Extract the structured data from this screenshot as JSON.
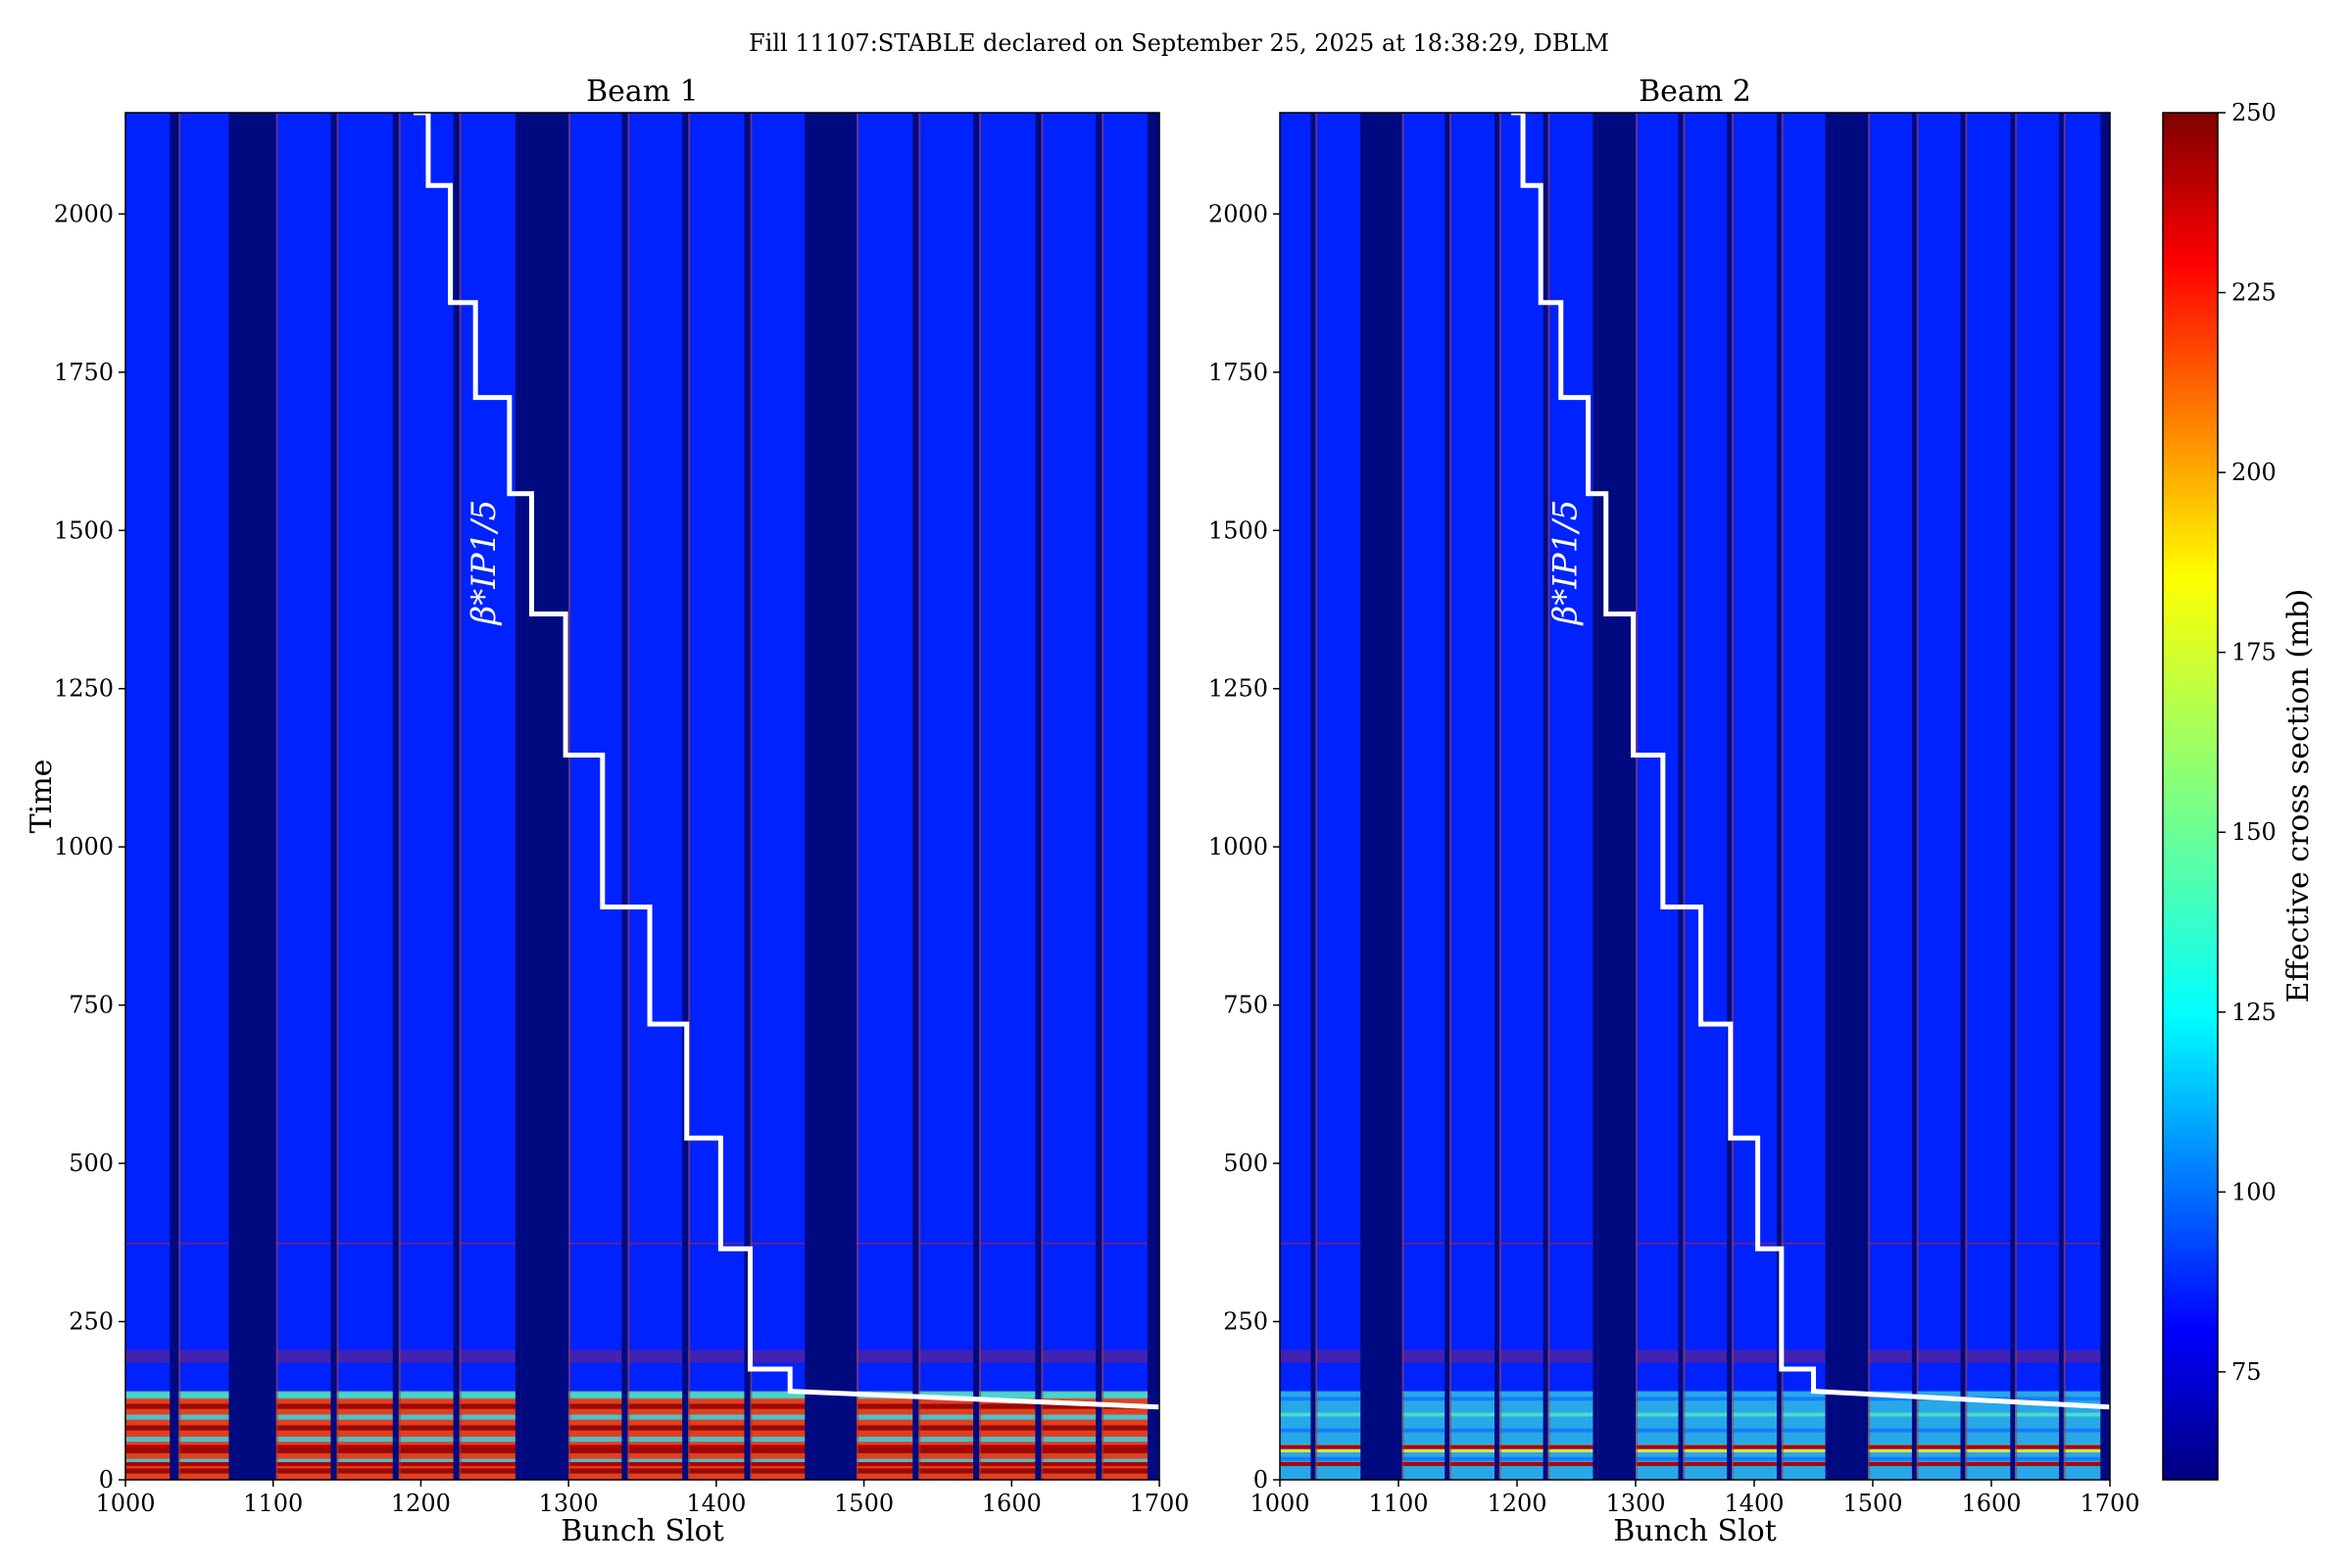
{
  "figure": {
    "title": "Fill 11107:STABLE declared on September 25, 2025 at 18:38:29, DBLM"
  },
  "chart_data": [
    {
      "type": "heatmap",
      "title": "Beam 1",
      "xlabel": "Bunch Slot",
      "ylabel": "Time",
      "xlim": [
        1000,
        1700
      ],
      "ylim": [
        0,
        2160
      ],
      "xticks": [
        "1000",
        "1100",
        "1200",
        "1300",
        "1400",
        "1500",
        "1600",
        "1700"
      ],
      "yticks": [
        "0",
        "250",
        "500",
        "750",
        "1000",
        "1250",
        "1500",
        "1750",
        "2000"
      ],
      "train_gaps": [
        [
          1030,
          1036
        ],
        [
          1070,
          1102
        ],
        [
          1139,
          1143
        ],
        [
          1181,
          1185
        ],
        [
          1222,
          1226
        ],
        [
          1264,
          1268
        ],
        [
          1268,
          1300
        ],
        [
          1336,
          1340
        ],
        [
          1377,
          1381
        ],
        [
          1419,
          1423
        ],
        [
          1460,
          1495
        ],
        [
          1533,
          1537
        ],
        [
          1574,
          1578
        ],
        [
          1616,
          1620
        ],
        [
          1657,
          1661
        ],
        [
          1692,
          1700
        ]
      ],
      "annotation": "β*IP1/5",
      "beta_star_step_x": [
        1195,
        1205,
        1220,
        1237,
        1260,
        1275,
        1298,
        1323,
        1355,
        1380,
        1403,
        1423,
        1450,
        1700
      ],
      "beta_star_step_y": [
        2160,
        2045,
        1860,
        1710,
        1558,
        1368,
        1145,
        905,
        720,
        540,
        365,
        175,
        140,
        115
      ]
    },
    {
      "type": "heatmap",
      "title": "Beam 2",
      "xlabel": "Bunch Slot",
      "ylabel": "",
      "xlim": [
        1000,
        1700
      ],
      "ylim": [
        0,
        2160
      ],
      "xticks": [
        "1000",
        "1100",
        "1200",
        "1300",
        "1400",
        "1500",
        "1600",
        "1700"
      ],
      "yticks": [
        "0",
        "250",
        "500",
        "750",
        "1000",
        "1250",
        "1500",
        "1750",
        "2000"
      ],
      "train_gaps": [
        [
          1026,
          1030
        ],
        [
          1068,
          1103
        ],
        [
          1139,
          1143
        ],
        [
          1181,
          1185
        ],
        [
          1222,
          1226
        ],
        [
          1264,
          1268
        ],
        [
          1268,
          1300
        ],
        [
          1336,
          1340
        ],
        [
          1377,
          1381
        ],
        [
          1419,
          1423
        ],
        [
          1460,
          1496
        ],
        [
          1533,
          1537
        ],
        [
          1574,
          1578
        ],
        [
          1616,
          1620
        ],
        [
          1657,
          1661
        ],
        [
          1692,
          1700
        ]
      ],
      "annotation": "β*IP1/5",
      "beta_star_step_x": [
        1195,
        1205,
        1220,
        1237,
        1260,
        1275,
        1298,
        1323,
        1355,
        1380,
        1403,
        1423,
        1450,
        1700
      ],
      "beta_star_step_y": [
        2160,
        2045,
        1860,
        1710,
        1558,
        1368,
        1145,
        905,
        720,
        540,
        365,
        175,
        140,
        115
      ]
    }
  ],
  "colorbar": {
    "label": "Effective cross section (mb)",
    "range": [
      60,
      250
    ],
    "ticks": [
      "75",
      "100",
      "125",
      "150",
      "175",
      "200",
      "225",
      "250"
    ],
    "colormap": "jet"
  },
  "colors": {
    "bunch_fill": "#0022ff",
    "gap_fill": "#000a80",
    "low_row_hot": "#b00000",
    "low_row_mid": "#30e0e0",
    "step_line": "#ffffff"
  }
}
